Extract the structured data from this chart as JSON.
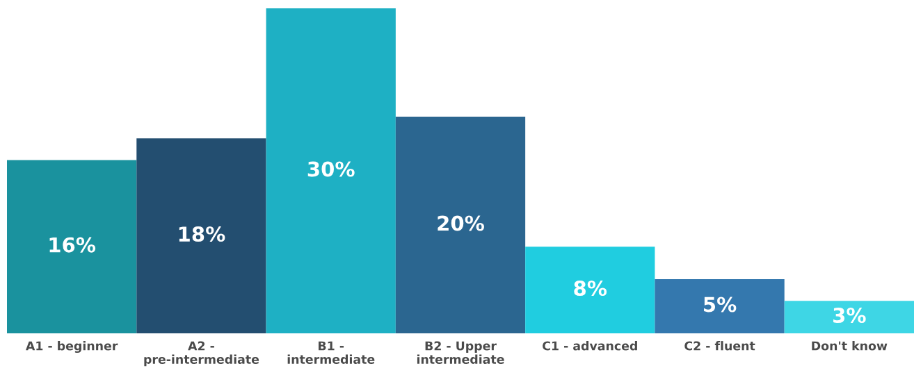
{
  "chart_data": {
    "type": "bar",
    "categories": [
      "A1 - beginner",
      "A2 -\npre-intermediate",
      "B1 -\nintermediate",
      "B2 - Upper\nintermediate",
      "C1 - advanced",
      "C2 - fluent",
      "Don't know"
    ],
    "values": [
      16,
      18,
      30,
      20,
      8,
      5,
      3
    ],
    "colors": [
      "#1a929e",
      "#234e70",
      "#1eb0c4",
      "#2b6690",
      "#20cde0",
      "#3478ae",
      "#3ed6e5"
    ],
    "value_labels": [
      "16%",
      "18%",
      "30%",
      "20%",
      "8%",
      "5%",
      "3%"
    ]
  }
}
